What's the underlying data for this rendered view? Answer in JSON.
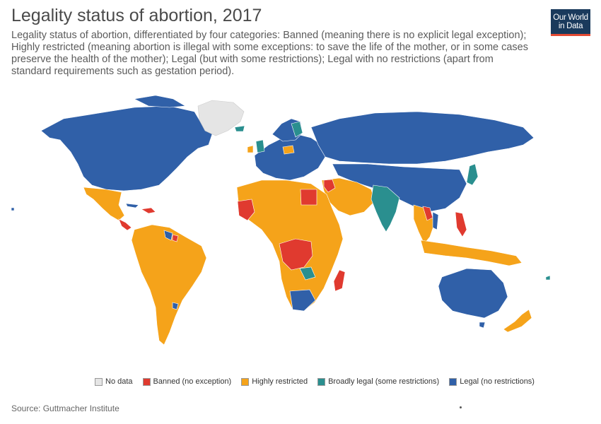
{
  "header": {
    "title": "Legality status of abortion, 2017",
    "subtitle": "Legality status of abortion, differentiated by four categories: Banned (meaning there is no explicit legal exception); Highly restricted (meaning abortion is illegal with some exceptions: to save the life of the mother, or in some cases preserve the health of the mother); Legal (but with some restrictions); Legal with no restrictions (apart from standard requirements such as gestation period)."
  },
  "logo": {
    "line1": "Our World",
    "line2": "in Data"
  },
  "colors": {
    "no_data": "#e5e5e5",
    "banned": "#e03a2f",
    "highly_restricted": "#f5a31a",
    "broadly_legal": "#2a8f8f",
    "legal": "#3060a8"
  },
  "legend": {
    "items": [
      {
        "label": "No data",
        "color": "#e5e5e5"
      },
      {
        "label": "Banned (no exception)",
        "color": "#e03a2f"
      },
      {
        "label": "Highly restricted",
        "color": "#f5a31a"
      },
      {
        "label": "Broadly legal (some restrictions)",
        "color": "#2a8f8f"
      },
      {
        "label": "Legal (no restrictions)",
        "color": "#3060a8"
      }
    ]
  },
  "footer": {
    "source": "Source: Guttmacher Institute"
  }
}
